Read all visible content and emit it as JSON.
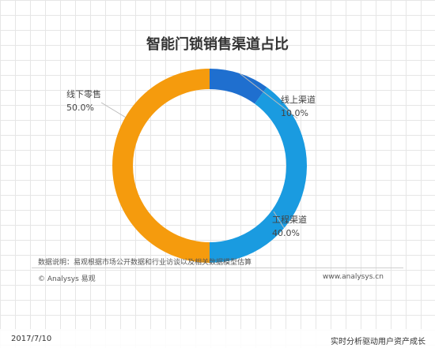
{
  "chart_data": {
    "type": "pie",
    "title": "智能门锁销售渠道占比",
    "slices": [
      {
        "name": "线上渠道",
        "value": 10.0,
        "label": "10.0%",
        "color": "#1f6fcf"
      },
      {
        "name": "工程渠道",
        "value": 40.0,
        "label": "40.0%",
        "color": "#1a9be0"
      },
      {
        "name": "线下零售",
        "value": 50.0,
        "label": "50.0%",
        "color": "#f59b0d"
      }
    ]
  },
  "note": "数据说明：易观根据市场公开数据和行业访谈以及相关数据模型估算",
  "copyright": "© Analysys 易观",
  "website": "www.analysys.cn",
  "date": "2017/7/10",
  "watermark": "实时分析驱动用户资产成长"
}
